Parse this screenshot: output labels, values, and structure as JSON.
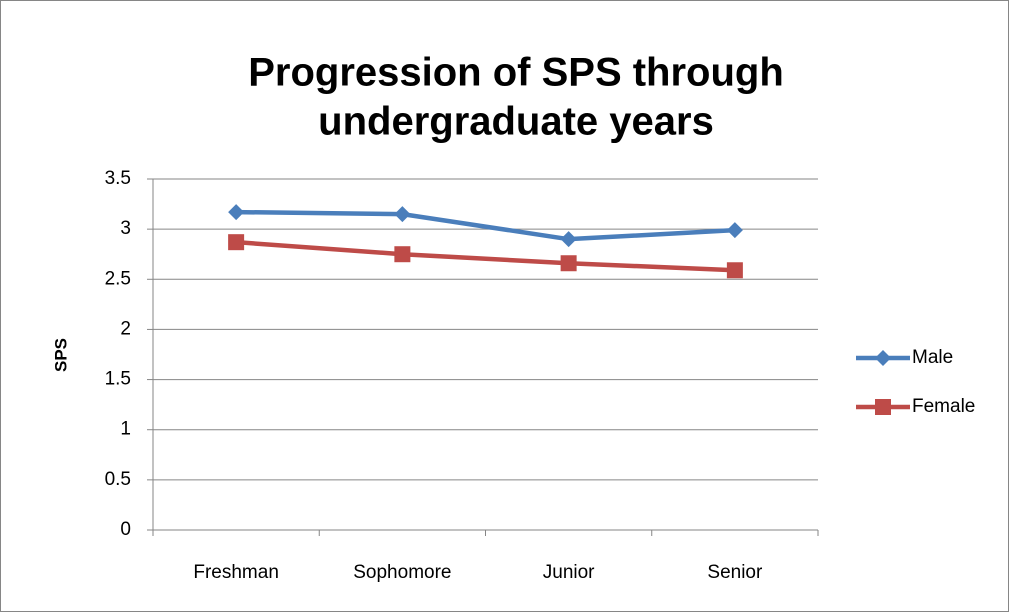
{
  "chart_data": {
    "type": "line",
    "title": [
      "Progression of SPS through",
      "undergraduate years"
    ],
    "ylabel": "SPS",
    "categories": [
      "Freshman",
      "Sophomore",
      "Junior",
      "Senior"
    ],
    "series": [
      {
        "name": "Male",
        "color": "#4a7ebb",
        "marker": "diamond",
        "values": [
          3.17,
          3.15,
          2.9,
          2.99
        ]
      },
      {
        "name": "Female",
        "color": "#be4b48",
        "marker": "square",
        "values": [
          2.87,
          2.75,
          2.66,
          2.59
        ]
      }
    ],
    "ylim": [
      0,
      3.5
    ],
    "yticks": [
      0,
      0.5,
      1,
      1.5,
      2,
      2.5,
      3,
      3.5
    ],
    "grid": true,
    "legend": "right"
  }
}
